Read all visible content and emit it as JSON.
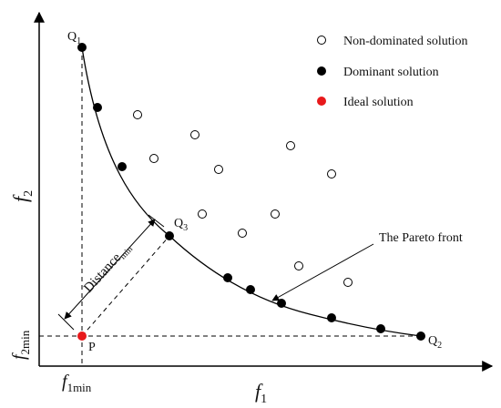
{
  "axes": {
    "x_label": "f",
    "x_sub": "1",
    "y_label": "f",
    "y_sub": "2",
    "x_min_label": "f",
    "x_min_sub": "1min",
    "y_min_label": "f",
    "y_min_sub": "2min"
  },
  "points": {
    "q1": {
      "name": "Q",
      "sub": "1"
    },
    "q2": {
      "name": "Q",
      "sub": "2"
    },
    "q3": {
      "name": "Q",
      "sub": "3"
    },
    "p": {
      "name": "P"
    }
  },
  "distance_label": {
    "name": "Distance",
    "sub": "min"
  },
  "pareto_label": "The Pareto front",
  "legend": [
    {
      "label": "Non-dominated solution",
      "marker": "open-circle",
      "color": "#000000"
    },
    {
      "label": "Dominant solution",
      "marker": "filled-circle",
      "color": "#000000"
    },
    {
      "label": "Ideal solution",
      "marker": "filled-circle",
      "color": "#e8191b"
    }
  ]
}
